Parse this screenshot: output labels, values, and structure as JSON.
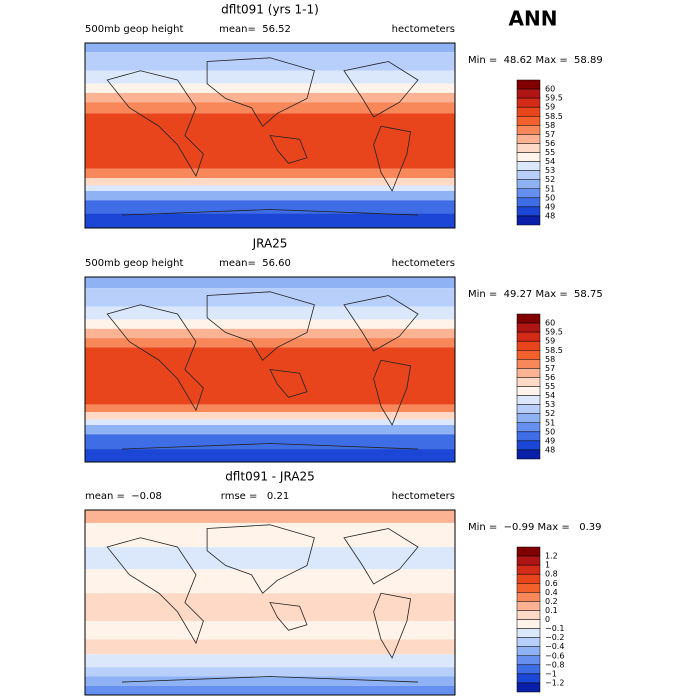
{
  "header": {
    "season": "ANN"
  },
  "panels": [
    {
      "title": "dflt091 (yrs 1-1)",
      "left": "500mb geop height",
      "center": "mean=  56.52",
      "right": "hectometers",
      "range": "Min =  48.62 Max =  58.89",
      "colorbar": [
        "60",
        "59.5",
        "59",
        "58.5",
        "58",
        "57",
        "56",
        "55",
        "54",
        "53",
        "52",
        "51",
        "50",
        "49",
        "48"
      ]
    },
    {
      "title": "JRA25",
      "left": "500mb geop height",
      "center": "mean=  56.60",
      "right": "hectometers",
      "range": "Min =  49.27 Max =  58.75",
      "colorbar": [
        "60",
        "59.5",
        "59",
        "58.5",
        "58",
        "57",
        "56",
        "55",
        "54",
        "53",
        "52",
        "51",
        "50",
        "49",
        "48"
      ]
    },
    {
      "title": "dflt091 - JRA25",
      "left": "mean =  −0.08",
      "center": "rmse =   0.21",
      "right": "hectometers",
      "range": "Min =  −0.99 Max =   0.39",
      "colorbar": [
        "1.2",
        "1",
        "0.8",
        "0.6",
        "0.4",
        "0.2",
        "0.1",
        "0",
        "−0.1",
        "−0.2",
        "−0.4",
        "−0.6",
        "−0.8",
        "−1",
        "−1.2"
      ]
    }
  ]
}
